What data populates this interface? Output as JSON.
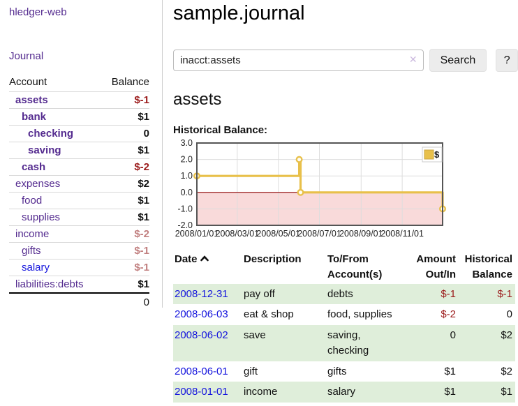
{
  "colors": {
    "purple": "#542b8f",
    "blue": "#1414dd",
    "neg": "#9b1b1b",
    "neg_muted": "#c17f7f",
    "stripe": "#dfeeda"
  },
  "sidebar": {
    "app_title": "hledger-web",
    "nav": {
      "journal": "Journal"
    },
    "accounts_header": {
      "account": "Account",
      "balance": "Balance"
    },
    "accounts": [
      {
        "name": "assets",
        "indent": 1,
        "bold": true,
        "balance": "$-1",
        "balance_style": "neg-strong"
      },
      {
        "name": "bank",
        "indent": 2,
        "bold": true,
        "balance": "$1"
      },
      {
        "name": "checking",
        "indent": 3,
        "bold": true,
        "balance": "0"
      },
      {
        "name": "saving",
        "indent": 3,
        "bold": true,
        "balance": "$1"
      },
      {
        "name": "cash",
        "indent": 2,
        "bold": true,
        "balance": "$-2",
        "balance_style": "neg-strong"
      },
      {
        "name": "expenses",
        "indent": 1,
        "bold": false,
        "balance": "$2"
      },
      {
        "name": "food",
        "indent": 2,
        "bold": false,
        "balance": "$1"
      },
      {
        "name": "supplies",
        "indent": 2,
        "bold": false,
        "balance": "$1"
      },
      {
        "name": "income",
        "indent": 1,
        "bold": false,
        "balance": "$-2",
        "balance_style": "neg-muted"
      },
      {
        "name": "gifts",
        "indent": 2,
        "bold": false,
        "balance": "$-1",
        "balance_style": "neg-muted"
      },
      {
        "name": "salary",
        "indent": 2,
        "bold": false,
        "balance": "$-1",
        "balance_style": "neg-muted",
        "link_color": "blue"
      },
      {
        "name": "liabilities:debts",
        "indent": 1,
        "bold": false,
        "balance": "$1"
      }
    ],
    "total": "0"
  },
  "main": {
    "title": "sample.journal",
    "search": {
      "query": "inacct:assets",
      "clear_icon": "✕",
      "button_label": "Search",
      "help_label": "?"
    },
    "account_heading": "assets",
    "chart_label": "Historical Balance:"
  },
  "chart_data": {
    "type": "line",
    "title": "Historical Balance:",
    "step": true,
    "x_range": [
      "2008-01-01",
      "2008-12-31"
    ],
    "y_range": [
      -2,
      3
    ],
    "x_ticks": [
      "2008/01/01",
      "2008/03/01",
      "2008/05/01",
      "2008/07/01",
      "2008/09/01",
      "2008/11/01"
    ],
    "y_ticks": [
      3.0,
      2.0,
      1.0,
      0.0,
      -1.0,
      -2.0
    ],
    "series": [
      {
        "name": "$",
        "color": "#e8c04a",
        "points": [
          [
            "2008-01-01",
            1
          ],
          [
            "2008-06-01",
            2
          ],
          [
            "2008-06-03",
            0
          ],
          [
            "2008-12-31",
            -1
          ]
        ]
      }
    ],
    "negative_region_fill": "#f9dada",
    "zero_line_color": "#8b0000",
    "grid_color": "#dddddd",
    "border_color": "#555555",
    "legend": {
      "label": "$",
      "position": "top-right"
    }
  },
  "transactions": {
    "headers": {
      "date": "Date",
      "description": "Description",
      "account": "To/From Account(s)",
      "amount": "Amount Out/In",
      "balance": "Historical Balance"
    },
    "rows": [
      {
        "date": "2008-12-31",
        "description": "pay off",
        "accounts": "debts",
        "amount": "$-1",
        "amount_negative": true,
        "balance": "$-1",
        "balance_negative": true
      },
      {
        "date": "2008-06-03",
        "description": "eat & shop",
        "accounts": "food, supplies",
        "amount": "$-2",
        "amount_negative": true,
        "balance": "0",
        "balance_negative": false
      },
      {
        "date": "2008-06-02",
        "description": "save",
        "accounts": "saving, checking",
        "amount": "0",
        "amount_negative": false,
        "balance": "$2",
        "balance_negative": false
      },
      {
        "date": "2008-06-01",
        "description": "gift",
        "accounts": "gifts",
        "amount": "$1",
        "amount_negative": false,
        "balance": "$2",
        "balance_negative": false
      },
      {
        "date": "2008-01-01",
        "description": "income",
        "accounts": "salary",
        "amount": "$1",
        "amount_negative": false,
        "balance": "$1",
        "balance_negative": false
      }
    ]
  }
}
